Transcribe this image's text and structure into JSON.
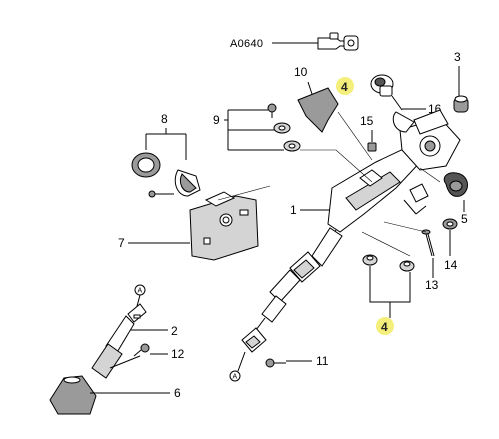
{
  "diagram": {
    "callouts": {
      "code": "A0640",
      "p1": "1",
      "p2": "2",
      "p3": "3",
      "p4_top": "4",
      "p4_bottom": "4",
      "p5": "5",
      "p6": "6",
      "p7": "7",
      "p8": "8",
      "p9": "9",
      "p10": "10",
      "p11": "11",
      "p12": "12",
      "p13": "13",
      "p14": "14",
      "p15": "15",
      "p16": "16"
    },
    "connectors": {
      "top": "A",
      "bottom": "A",
      "mid": "A"
    },
    "highlight_color": "#f3ef7a"
  }
}
